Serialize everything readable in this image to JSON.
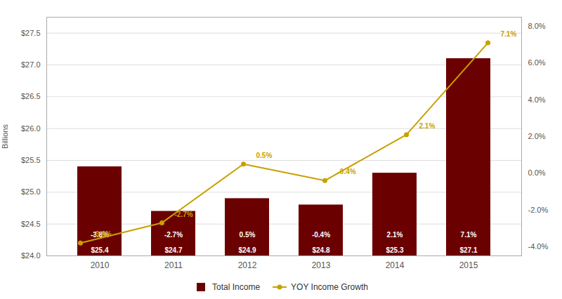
{
  "chart_data": {
    "type": "bar",
    "categories": [
      "2010",
      "2011",
      "2012",
      "2013",
      "2014",
      "2015"
    ],
    "ylabel": "Billions",
    "ylim": [
      24.0,
      27.75
    ],
    "yticks": [
      {
        "value": 24.0,
        "label": "$24.0"
      },
      {
        "value": 24.5,
        "label": "$24.5"
      },
      {
        "value": 25.0,
        "label": "$25.0"
      },
      {
        "value": 25.5,
        "label": "$25.5"
      },
      {
        "value": 26.0,
        "label": "$26.0"
      },
      {
        "value": 26.5,
        "label": "$26.5"
      },
      {
        "value": 27.0,
        "label": "$27.0"
      },
      {
        "value": 27.5,
        "label": "$27.5"
      }
    ],
    "y2lim": [
      -4.5,
      8.5
    ],
    "y2ticks": [
      {
        "value": -4.0,
        "label": "-4.0%"
      },
      {
        "value": -2.0,
        "label": "-2.0%"
      },
      {
        "value": 0.0,
        "label": "0.0%"
      },
      {
        "value": 2.0,
        "label": "2.0%"
      },
      {
        "value": 4.0,
        "label": "4.0%"
      },
      {
        "value": 6.0,
        "label": "6.0%"
      },
      {
        "value": 8.0,
        "label": "8.0%"
      }
    ],
    "grid": true,
    "legend": "bottom",
    "data_labels": true,
    "series": [
      {
        "name": "Total Income",
        "type": "bar",
        "color": "#6B0000",
        "values": [
          25.4,
          24.7,
          24.9,
          24.8,
          25.3,
          27.1
        ],
        "value_labels": [
          "$25.4",
          "$24.7",
          "$24.9",
          "$24.8",
          "$25.3",
          "$27.1"
        ]
      },
      {
        "name": "YOY Income Growth",
        "type": "line",
        "axis": "y2",
        "color": "#C8A000",
        "marker": "circle",
        "values": [
          -3.8,
          -2.7,
          0.5,
          -0.4,
          2.1,
          7.1
        ],
        "value_labels": [
          "-3.8%",
          "-2.7%",
          "0.5%",
          "-0.4%",
          "2.1%",
          "7.1%"
        ]
      }
    ],
    "annotations": [
      {
        "x": "2010",
        "text": "-3.8%"
      },
      {
        "x": "2011",
        "text": "-2.7%"
      },
      {
        "x": "2012",
        "text": "0.5%"
      },
      {
        "x": "2013",
        "text": "-0.4%"
      },
      {
        "x": "2014",
        "text": "2.1%"
      },
      {
        "x": "2015",
        "text": "7.1%"
      }
    ]
  }
}
